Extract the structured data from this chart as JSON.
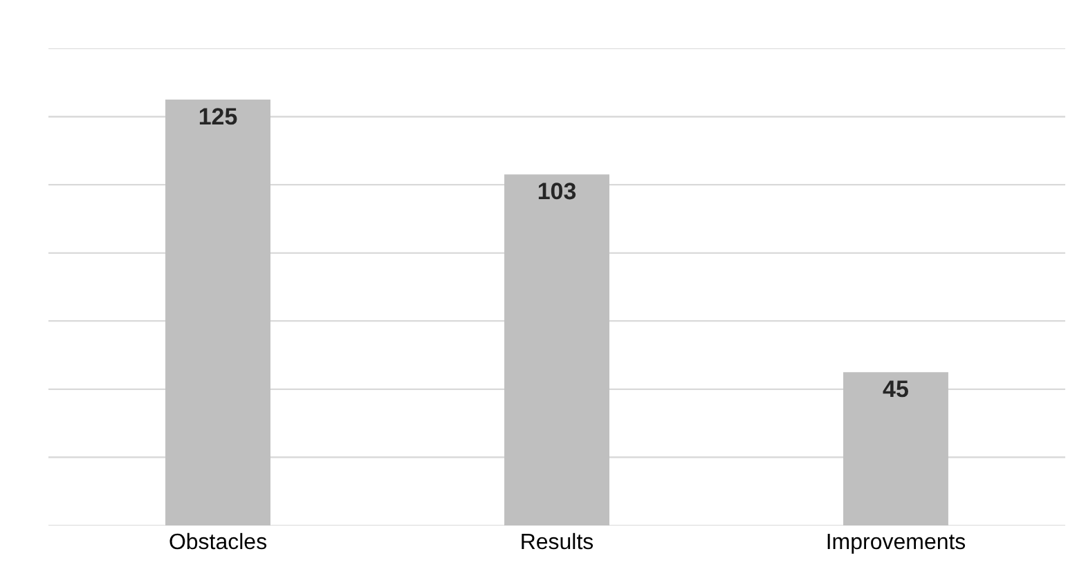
{
  "chart_data": {
    "type": "bar",
    "categories": [
      "Obstacles",
      "Results",
      "Improvements"
    ],
    "values": [
      125,
      103,
      45
    ],
    "color": "#bfbfbf",
    "data_labels": true,
    "ylim": [
      0,
      140
    ],
    "yticks": [
      {
        "value": 0,
        "label": null
      },
      {
        "value": 20,
        "label": null
      },
      {
        "value": 40,
        "label": null
      },
      {
        "value": 60,
        "label": null
      },
      {
        "value": 80,
        "label": null
      },
      {
        "value": 100,
        "label": null
      },
      {
        "value": 120,
        "label": null
      },
      {
        "value": 140,
        "label": null
      }
    ],
    "grid": "y",
    "tick_labels": "x",
    "legend": false
  }
}
